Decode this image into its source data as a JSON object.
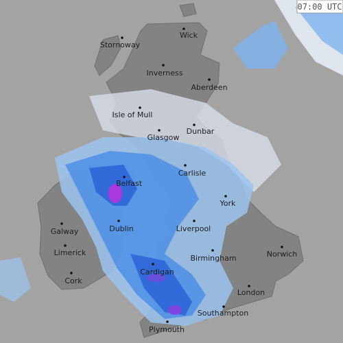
{
  "timestamp": "07:00 UTC",
  "places": [
    {
      "name": "Stornoway"
    },
    {
      "name": "Wick"
    },
    {
      "name": "Inverness"
    },
    {
      "name": "Aberdeen"
    },
    {
      "name": "Isle of Mull"
    },
    {
      "name": "Glasgow"
    },
    {
      "name": "Dunbar"
    },
    {
      "name": "Carlisle"
    },
    {
      "name": "Belfast"
    },
    {
      "name": "York"
    },
    {
      "name": "Galway"
    },
    {
      "name": "Dublin"
    },
    {
      "name": "Liverpool"
    },
    {
      "name": "Norwich"
    },
    {
      "name": "Limerick"
    },
    {
      "name": "Birmingham"
    },
    {
      "name": "Cardigan"
    },
    {
      "name": "Cork"
    },
    {
      "name": "London"
    },
    {
      "name": "Southampton"
    },
    {
      "name": "Plymouth"
    }
  ]
}
